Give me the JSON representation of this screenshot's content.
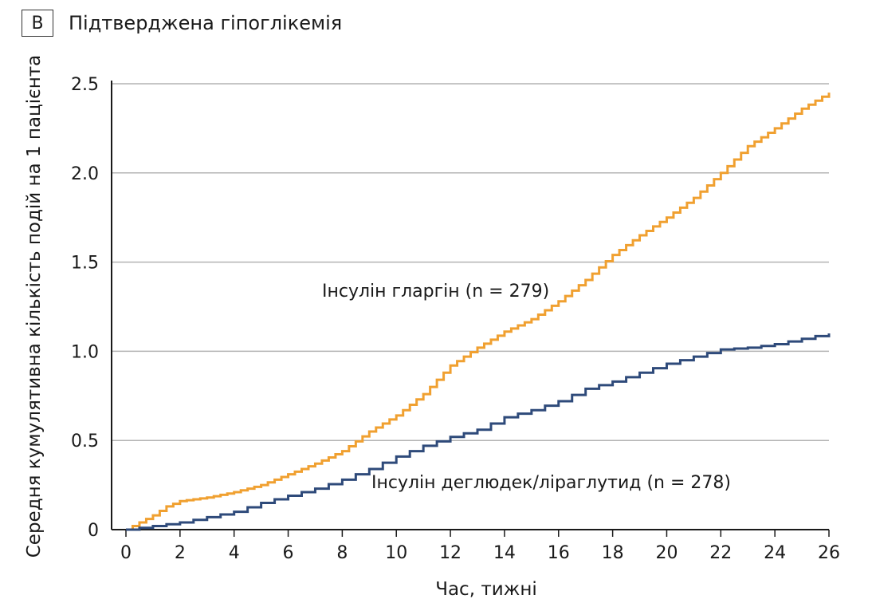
{
  "panel_letter": "B",
  "chart_data": {
    "type": "line",
    "title": "Підтверджена гіпоглікемія",
    "xlabel": "Час, тижні",
    "ylabel": "Середня кумулятивна кількість подій на 1 пацієнта",
    "xlim": [
      0,
      26
    ],
    "ylim": [
      0,
      2.5
    ],
    "x_ticks": [
      "0",
      "2",
      "4",
      "6",
      "8",
      "10",
      "12",
      "14",
      "16",
      "18",
      "20",
      "22",
      "24",
      "26"
    ],
    "y_ticks": [
      "0",
      "0.5",
      "1.0",
      "1.5",
      "2.0",
      "2.5"
    ],
    "grid": true,
    "series": [
      {
        "name": "Інсулін гларгін (n = 279)",
        "color": "#f0a030",
        "step": true,
        "x": [
          0,
          0.5,
          1,
          1.5,
          2,
          3,
          4,
          5,
          6,
          7,
          8,
          9,
          10,
          11,
          12,
          13,
          14,
          15,
          16,
          17,
          18,
          19,
          20,
          21,
          22,
          23,
          24,
          25,
          26
        ],
        "y": [
          0,
          0.04,
          0.08,
          0.13,
          0.16,
          0.18,
          0.21,
          0.25,
          0.31,
          0.37,
          0.44,
          0.55,
          0.64,
          0.76,
          0.92,
          1.02,
          1.11,
          1.18,
          1.28,
          1.4,
          1.54,
          1.65,
          1.75,
          1.86,
          2.0,
          2.15,
          2.25,
          2.36,
          2.45
        ]
      },
      {
        "name": "Інсулін деглюдек/ліраглутид (n = 278)",
        "color": "#2e4a7a",
        "step": true,
        "x": [
          0,
          1,
          2,
          3,
          4,
          5,
          6,
          7,
          8,
          9,
          10,
          11,
          12,
          13,
          14,
          15,
          16,
          17,
          18,
          19,
          20,
          21,
          22,
          23,
          24,
          25,
          26
        ],
        "y": [
          0,
          0.02,
          0.04,
          0.07,
          0.1,
          0.15,
          0.19,
          0.23,
          0.28,
          0.34,
          0.41,
          0.47,
          0.52,
          0.56,
          0.63,
          0.67,
          0.72,
          0.79,
          0.83,
          0.88,
          0.93,
          0.97,
          1.01,
          1.02,
          1.04,
          1.07,
          1.1
        ]
      }
    ]
  }
}
